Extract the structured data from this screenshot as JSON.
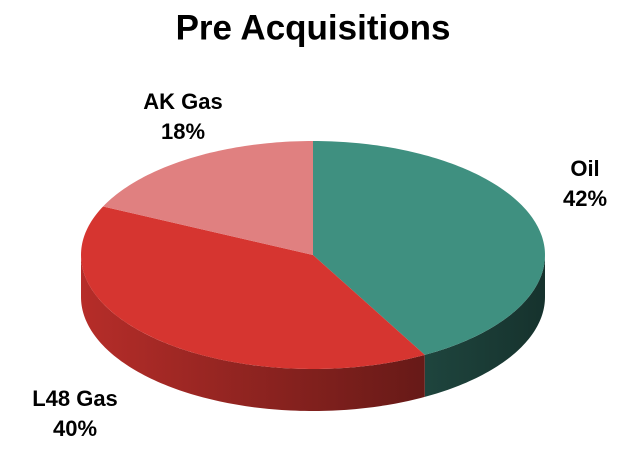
{
  "chart_data": {
    "type": "pie",
    "title": "Pre Acquisitions",
    "categories": [
      "Oil",
      "L48 Gas",
      "AK Gas"
    ],
    "values": [
      42,
      40,
      18
    ],
    "value_labels": [
      "42%",
      "40%",
      "18%"
    ],
    "colors": [
      "#3f9080",
      "#d63530",
      "#e08080"
    ]
  }
}
